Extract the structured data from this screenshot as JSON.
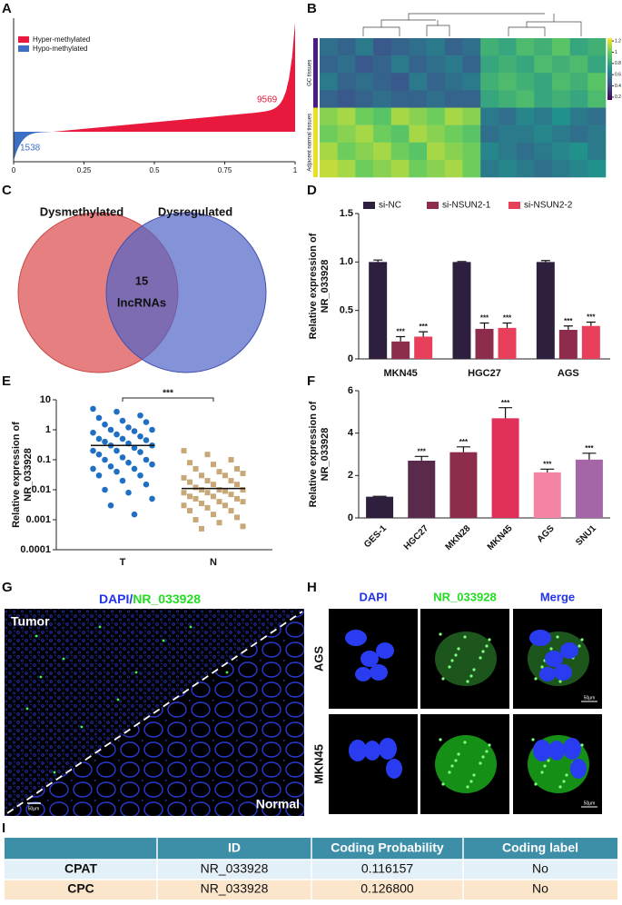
{
  "panel_labels": [
    "A",
    "B",
    "C",
    "D",
    "E",
    "F",
    "G",
    "H",
    "I"
  ],
  "chart_data": [
    {
      "type": "area",
      "series": [
        {
          "name": "Hyper-methylated",
          "color": "#e8193c",
          "value": 9569
        },
        {
          "name": "Hypo-methylated",
          "color": "#3c6fc4",
          "value": 1538
        }
      ],
      "xlim": [
        0,
        1
      ],
      "xticks": [
        0,
        0.25,
        0.5,
        0.75,
        1
      ]
    },
    {
      "type": "heatmap",
      "row_groups": [
        {
          "name": "GC tissues",
          "rows": 4
        },
        {
          "name": "Adjacent normal tissues",
          "rows": 4
        }
      ],
      "values": [
        [
          0.55,
          0.5,
          0.6,
          0.45,
          0.5,
          0.55,
          0.6,
          0.5,
          0.55,
          0.85,
          0.8,
          0.9,
          0.85,
          0.95,
          0.8,
          0.85
        ],
        [
          0.5,
          0.55,
          0.45,
          0.5,
          0.6,
          0.5,
          0.55,
          0.6,
          0.5,
          0.8,
          0.85,
          0.8,
          0.9,
          0.85,
          0.9,
          0.8
        ],
        [
          0.6,
          0.5,
          0.55,
          0.5,
          0.45,
          0.6,
          0.5,
          0.55,
          0.6,
          0.85,
          0.9,
          0.85,
          0.8,
          0.9,
          0.85,
          0.95
        ],
        [
          0.5,
          0.45,
          0.5,
          0.55,
          0.5,
          0.5,
          0.55,
          0.5,
          0.5,
          0.8,
          0.85,
          0.9,
          0.8,
          0.85,
          0.8,
          0.9
        ],
        [
          1.05,
          1.1,
          1.0,
          0.95,
          1.1,
          1.05,
          1.0,
          1.1,
          1.05,
          0.6,
          0.55,
          0.65,
          0.6,
          0.7,
          0.6,
          0.55
        ],
        [
          1.0,
          1.05,
          1.1,
          1.0,
          0.95,
          1.1,
          1.05,
          1.0,
          0.95,
          0.55,
          0.6,
          0.6,
          0.65,
          0.6,
          0.55,
          0.6
        ],
        [
          1.1,
          1.0,
          1.05,
          1.1,
          1.0,
          0.95,
          1.1,
          1.05,
          1.0,
          0.65,
          0.6,
          0.55,
          0.6,
          0.65,
          0.7,
          0.6
        ],
        [
          1.15,
          1.1,
          1.0,
          1.05,
          1.1,
          1.0,
          1.05,
          1.1,
          1.0,
          0.6,
          0.65,
          0.6,
          0.55,
          0.6,
          0.65,
          0.7
        ]
      ],
      "clim": [
        0.15,
        1.25
      ],
      "cticks": [
        1.2,
        1,
        0.8,
        0.6,
        0.4,
        0.2
      ]
    },
    {
      "type": "venn",
      "sets": [
        "Dysmethylated",
        "Dysregulated"
      ],
      "overlap": 15,
      "overlap_label": "lncRNAs"
    },
    {
      "type": "bar",
      "categories": [
        "MKN45",
        "HGC27",
        "AGS"
      ],
      "series": [
        {
          "name": "si-NC",
          "color": "#2e1f3e",
          "values": [
            1.0,
            1.0,
            1.0
          ],
          "errors": [
            0.02,
            0.005,
            0.015
          ],
          "significance": [
            null,
            null,
            null
          ]
        },
        {
          "name": "si-NSUN2-1",
          "color": "#8e2c4c",
          "values": [
            0.18,
            0.31,
            0.3
          ],
          "errors": [
            0.05,
            0.06,
            0.04
          ],
          "significance": [
            "***",
            "***",
            "***"
          ]
        },
        {
          "name": "si-NSUN2-2",
          "color": "#e8405a",
          "values": [
            0.23,
            0.32,
            0.34
          ],
          "errors": [
            0.05,
            0.05,
            0.04
          ],
          "significance": [
            "***",
            "***",
            "***"
          ]
        }
      ],
      "ylabel": [
        "Relative expression of",
        "NR_033928"
      ],
      "ylim": [
        0,
        1.5
      ],
      "yticks": [
        0,
        0.5,
        {
          "value": 1,
          "label": "1.0"
        },
        1.5
      ]
    },
    {
      "type": "scatter",
      "log_y": true,
      "categories": [
        "T",
        "N"
      ],
      "series": [
        {
          "name": "T",
          "color": "#1f6fc4",
          "marker": "circle",
          "mean": 0.3,
          "values": [
            5,
            4,
            3,
            2.5,
            2,
            1.8,
            1.5,
            1.2,
            1,
            1,
            0.9,
            0.8,
            0.7,
            0.6,
            0.5,
            0.5,
            0.45,
            0.4,
            0.35,
            0.3,
            0.3,
            0.25,
            0.2,
            0.2,
            0.18,
            0.15,
            0.12,
            0.1,
            0.1,
            0.08,
            0.07,
            0.06,
            0.05,
            0.05,
            0.04,
            0.03,
            0.03,
            0.02,
            0.015,
            0.01,
            0.008,
            0.005,
            0.003,
            0.0015
          ]
        },
        {
          "name": "N",
          "color": "#c9a878",
          "marker": "square",
          "mean": 0.011,
          "values": [
            0.2,
            0.15,
            0.1,
            0.08,
            0.07,
            0.05,
            0.05,
            0.04,
            0.035,
            0.03,
            0.03,
            0.025,
            0.02,
            0.02,
            0.018,
            0.015,
            0.015,
            0.012,
            0.01,
            0.01,
            0.01,
            0.009,
            0.008,
            0.008,
            0.007,
            0.006,
            0.006,
            0.005,
            0.005,
            0.004,
            0.004,
            0.0035,
            0.003,
            0.003,
            0.0025,
            0.002,
            0.002,
            0.0015,
            0.0012,
            0.001,
            0.0008,
            0.0006,
            0.0005
          ]
        }
      ],
      "significance": "***",
      "ylabel": [
        "Relative expression of",
        "NR_033928"
      ],
      "ylim": [
        0.0001,
        10
      ],
      "yticks": [
        10,
        1,
        0.1,
        0.01,
        0.001,
        0.0001
      ]
    },
    {
      "type": "bar",
      "categories": [
        "GES-1",
        "HGC27",
        "MKN28",
        "MKN45",
        "AGS",
        "SNU1"
      ],
      "colors": [
        "#2e1f3e",
        "#5a2a4c",
        "#8e2c4c",
        "#e0305a",
        "#f384a4",
        "#a466a6"
      ],
      "values": [
        1,
        2.7,
        3.1,
        4.7,
        2.15,
        2.75
      ],
      "errors": [
        0.02,
        0.2,
        0.25,
        0.5,
        0.15,
        0.3
      ],
      "significance": [
        null,
        "***",
        "***",
        "***",
        "***",
        "***"
      ],
      "ylabel": [
        "Relative expression of",
        "NR_033928"
      ],
      "ylim": [
        0,
        6
      ],
      "yticks": [
        0,
        2,
        4,
        6
      ]
    }
  ],
  "figures": {
    "G": {
      "title_parts": [
        "DAPI/",
        "NR_033928"
      ],
      "regions": [
        "Tumor",
        "Normal"
      ],
      "scale": "50μm"
    },
    "H": {
      "columns": [
        "DAPI",
        "NR_033928",
        "Merge"
      ],
      "rows": [
        "AGS",
        "MKN45"
      ],
      "scale": "50μm"
    }
  },
  "table": {
    "header": [
      "ID",
      "Coding Probability",
      "Coding label"
    ],
    "rows": [
      [
        "CPAT",
        "NR_033928",
        "0.116157",
        "No"
      ],
      [
        "CPC",
        "NR_033928",
        "0.126800",
        "No"
      ]
    ]
  }
}
